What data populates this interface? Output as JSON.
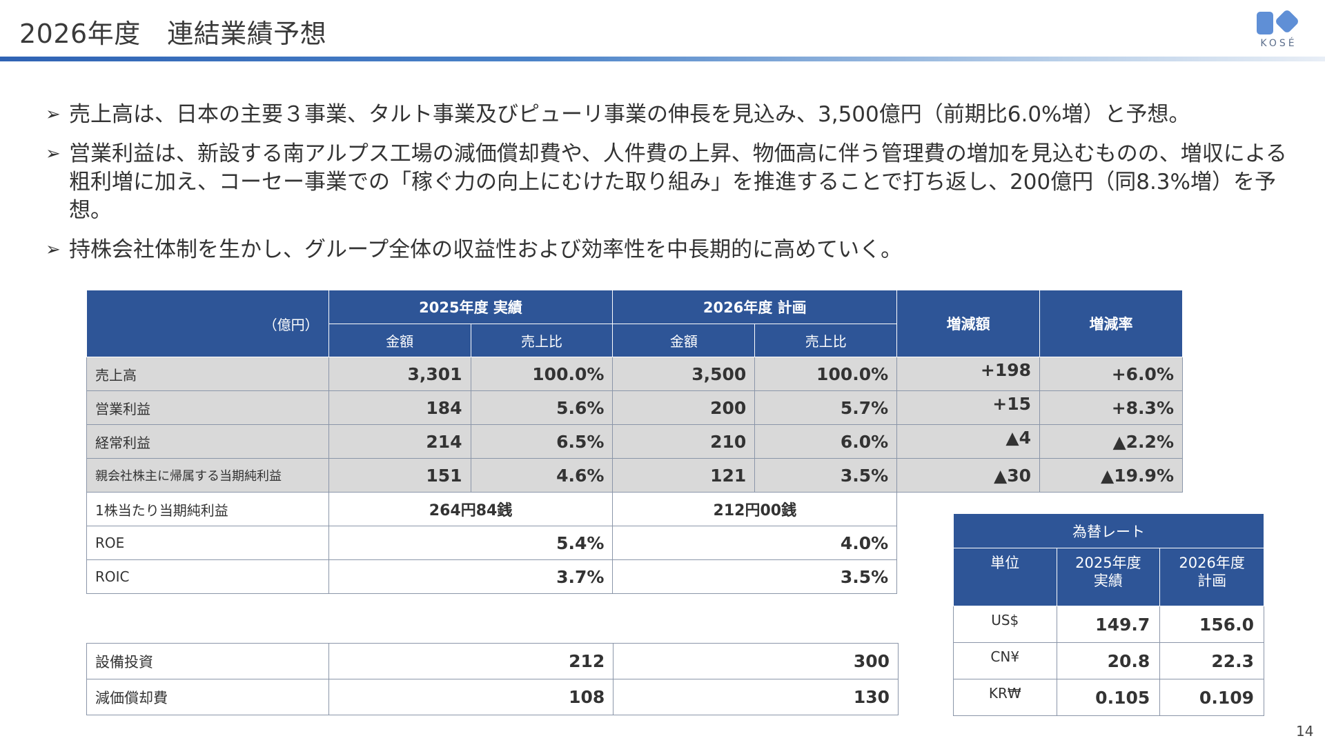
{
  "header": {
    "title": "2026年度　連結業績予想",
    "logo_text": "KOSÉ"
  },
  "bullets": [
    "売上高は、日本の主要３事業、タルト事業及びピューリ事業の伸長を見込み、3,500億円（前期比6.0%増）と予想。",
    "営業利益は、新設する南アルプス工場の減価償却費や、人件費の上昇、物価高に伴う管理費の増加を見込むものの、増収による粗利増に加え、コーセー事業での「稼ぐ力の向上にむけた取り組み」を推進することで打ち返し、200億円（同8.3%増）を予想。",
    "持株会社体制を生かし、グループ全体の収益性および効率性を中長期的に高めていく。"
  ],
  "main_table": {
    "unit_label": "（億円）",
    "group_2025": "2025年度 実績",
    "group_2026": "2026年度 計画",
    "col_change": "増減額",
    "col_rate": "増減率",
    "sub_amount": "金額",
    "sub_ratio": "売上比",
    "rows": [
      {
        "label": "売上高",
        "a2025": "3,301",
        "r2025": "100.0%",
        "a2026": "3,500",
        "r2026": "100.0%",
        "change": "+198",
        "rate": "+6.0%"
      },
      {
        "label": "営業利益",
        "a2025": "184",
        "r2025": "5.6%",
        "a2026": "200",
        "r2026": "5.7%",
        "change": "+15",
        "rate": "+8.3%"
      },
      {
        "label": "経常利益",
        "a2025": "214",
        "r2025": "6.5%",
        "a2026": "210",
        "r2026": "6.0%",
        "change": "▲4",
        "rate": "▲2.2%"
      },
      {
        "label": "親会社株主に帰属する当期純利益",
        "a2025": "151",
        "r2025": "4.6%",
        "a2026": "121",
        "r2026": "3.5%",
        "change": "▲30",
        "rate": "▲19.9%"
      }
    ],
    "eps": {
      "label": "1株当たり当期純利益",
      "v2025": "264円84銭",
      "v2026": "212円00銭"
    },
    "roe": {
      "label": "ROE",
      "v2025": "5.4%",
      "v2026": "4.0%"
    },
    "roic": {
      "label": "ROIC",
      "v2025": "3.7%",
      "v2026": "3.5%"
    }
  },
  "capex_table": {
    "capex": {
      "label": "設備投資",
      "v2025": "212",
      "v2026": "300"
    },
    "depr": {
      "label": "減価償却費",
      "v2025": "108",
      "v2026": "130"
    }
  },
  "fx_table": {
    "title": "為替レート",
    "col_unit": "単位",
    "col_2025_l1": "2025年度",
    "col_2025_l2": "実績",
    "col_2026_l1": "2026年度",
    "col_2026_l2": "計画",
    "rows": [
      {
        "cur": "US$",
        "v2025": "149.7",
        "v2026": "156.0"
      },
      {
        "cur": "CN¥",
        "v2025": "20.8",
        "v2026": "22.3"
      },
      {
        "cur": "KR₩",
        "v2025": "0.105",
        "v2026": "0.109"
      }
    ]
  },
  "page_number": "14"
}
